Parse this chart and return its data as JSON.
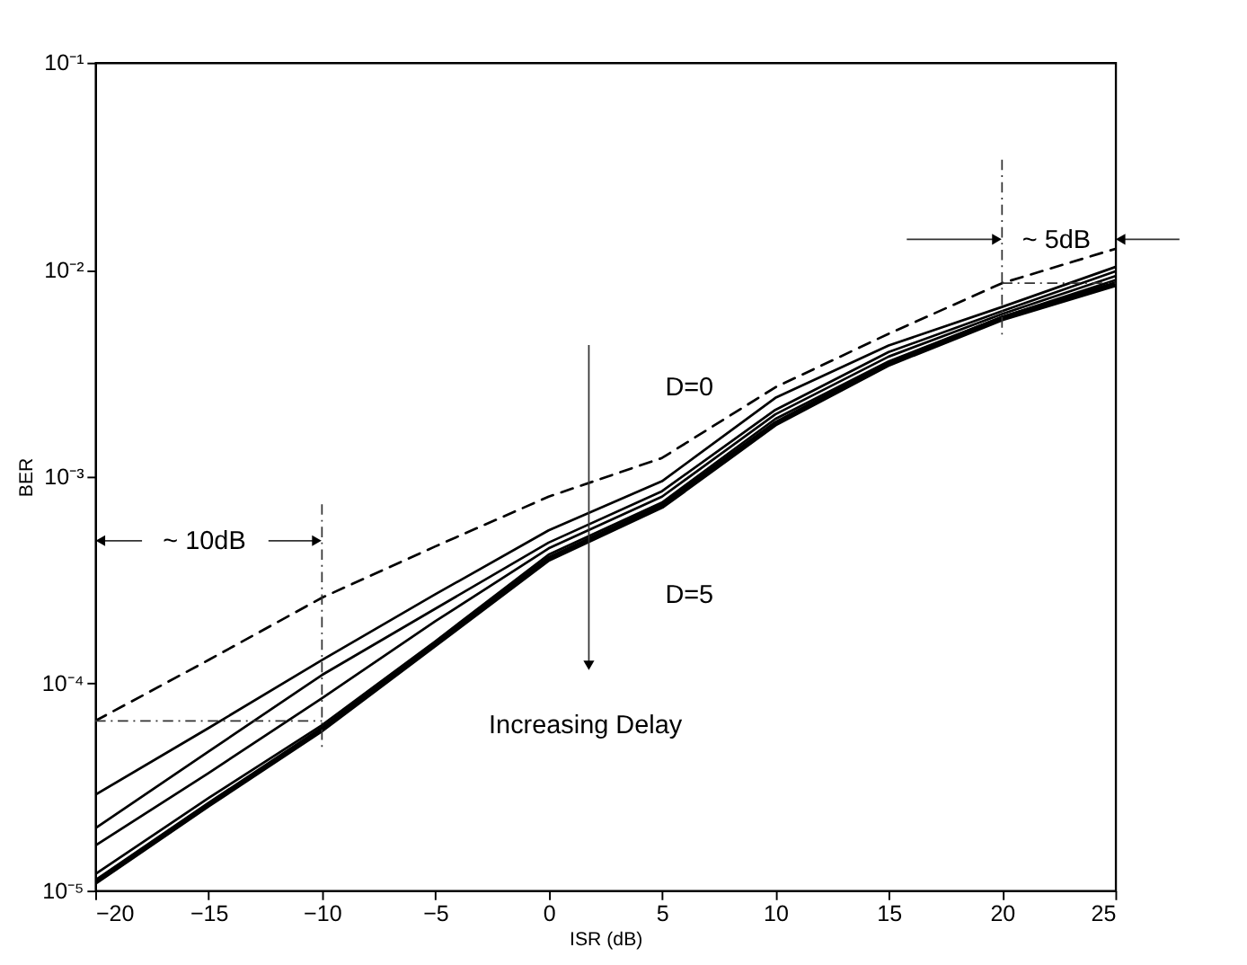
{
  "chart_data": {
    "type": "line",
    "xlabel": "ISR (dB)",
    "ylabel": "BER",
    "log": "y",
    "grid": false,
    "marker": "none",
    "x": [
      -20,
      -15,
      -10,
      -5,
      0,
      5,
      10,
      15,
      20,
      25
    ],
    "xlim": [
      -20,
      25
    ],
    "xticks": [
      -20,
      -15,
      -10,
      -5,
      0,
      5,
      10,
      15,
      20,
      25
    ],
    "ylim": [
      1e-05,
      0.1
    ],
    "yticks": [
      {
        "value": 1e-05,
        "label": "10⁻⁵"
      },
      {
        "value": 0.0001,
        "label": "10⁻⁴"
      },
      {
        "value": 0.001,
        "label": "10⁻³"
      },
      {
        "value": 0.01,
        "label": "10⁻²"
      },
      {
        "value": 0.1,
        "label": "10⁻¹"
      }
    ],
    "series": [
      {
        "color": "#000000",
        "line_style": "dashed",
        "values": [
          6.6e-05,
          0.00013,
          0.00026,
          0.00046,
          0.0008,
          0.00123,
          0.0027,
          0.0049,
          0.0086,
          0.0126
        ]
      },
      {
        "color": "#000000",
        "line_style": "solid",
        "values": [
          2.9e-05,
          6.1e-05,
          0.00013,
          0.00027,
          0.00055,
          0.00095,
          0.0024,
          0.0043,
          0.0066,
          0.0103
        ]
      },
      {
        "color": "#000000",
        "line_style": "solid",
        "values": [
          2e-05,
          4.7e-05,
          0.00011,
          0.00023,
          0.00048,
          0.00085,
          0.0021,
          0.004,
          0.0063,
          0.0098
        ]
      },
      {
        "color": "#000000",
        "line_style": "solid",
        "values": [
          1.65e-05,
          3.7e-05,
          8.5e-05,
          0.0002,
          0.00045,
          0.0008,
          0.002,
          0.0038,
          0.0061,
          0.0093
        ]
      },
      {
        "color": "#000000",
        "line_style": "solid",
        "values": [
          1.2e-05,
          2.8e-05,
          6.3e-05,
          0.00016,
          0.00042,
          0.00075,
          0.0019,
          0.0036,
          0.0059,
          0.0089
        ]
      },
      {
        "color": "#000000",
        "line_style": "solid",
        "values": [
          1.1e-05,
          2.6e-05,
          6e-05,
          0.000155,
          0.0004,
          0.00072,
          0.0018,
          0.0035,
          0.0058,
          0.0085
        ]
      }
    ],
    "ref_lines": [
      {
        "axis": "x",
        "value": -10,
        "color": "#333333",
        "line_style": "dashed"
      },
      {
        "axis": "x",
        "value": 20,
        "color": "#333333",
        "line_style": "dashed"
      },
      {
        "axis": "y",
        "value": 6.6e-05,
        "color": "#333333",
        "line_style": "dashed"
      },
      {
        "axis": "y",
        "value": 0.0086,
        "color": "#333333",
        "line_style": "dashed"
      }
    ],
    "annotations": [
      "D=0",
      "D=5",
      "Increasing Delay",
      "~ 10dB",
      "~ 5dB"
    ]
  }
}
